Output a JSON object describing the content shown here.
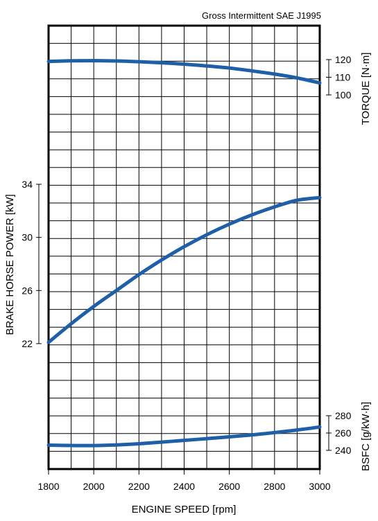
{
  "chart_data": {
    "type": "line",
    "title": "Gross Intermittent SAE J1995",
    "xlabel": "ENGINE SPEED [rpm]",
    "xlim": [
      1800,
      3000
    ],
    "x_ticks": [
      "1800",
      "2000",
      "2200",
      "2400",
      "2600",
      "2800",
      "3000"
    ],
    "axes": {
      "torque": {
        "label": "TORQUE [N·m]",
        "ticks": [
          "120",
          "110",
          "100"
        ],
        "side": "right-top"
      },
      "power": {
        "label": "BRAKE HORSE POWER [kW]",
        "ticks": [
          "34",
          "30",
          "26",
          "22"
        ],
        "side": "left-middle"
      },
      "bsfc": {
        "label": "BSFC [g/kW·h]",
        "ticks": [
          "280",
          "260",
          "240"
        ],
        "side": "right-bottom"
      }
    },
    "grid": true,
    "line_color": "#1f5fa8",
    "series": [
      {
        "axis": "torque",
        "x": [
          1800,
          1900,
          2000,
          2100,
          2200,
          2300,
          2400,
          2500,
          2600,
          2700,
          2800,
          2900,
          3000
        ],
        "values": [
          118.9,
          119.3,
          119.4,
          119.2,
          118.8,
          118.2,
          117.4,
          116.4,
          115.2,
          113.6,
          111.8,
          109.6,
          106.8
        ]
      },
      {
        "axis": "power",
        "x": [
          1800,
          1900,
          2000,
          2100,
          2200,
          2300,
          2400,
          2500,
          2600,
          2700,
          2800,
          2900,
          3000
        ],
        "values": [
          22.1,
          23.5,
          24.8,
          26.0,
          27.2,
          28.3,
          29.3,
          30.2,
          31.0,
          31.7,
          32.3,
          32.8,
          33.0
        ]
      },
      {
        "axis": "bsfc",
        "x": [
          1800,
          1900,
          2000,
          2100,
          2200,
          2300,
          2400,
          2500,
          2600,
          2700,
          2800,
          2900,
          3000
        ],
        "values": [
          246,
          245.6,
          245.5,
          246.2,
          247.6,
          249.5,
          251.5,
          253.5,
          255.6,
          257.8,
          260.5,
          263.5,
          267
        ]
      }
    ]
  }
}
